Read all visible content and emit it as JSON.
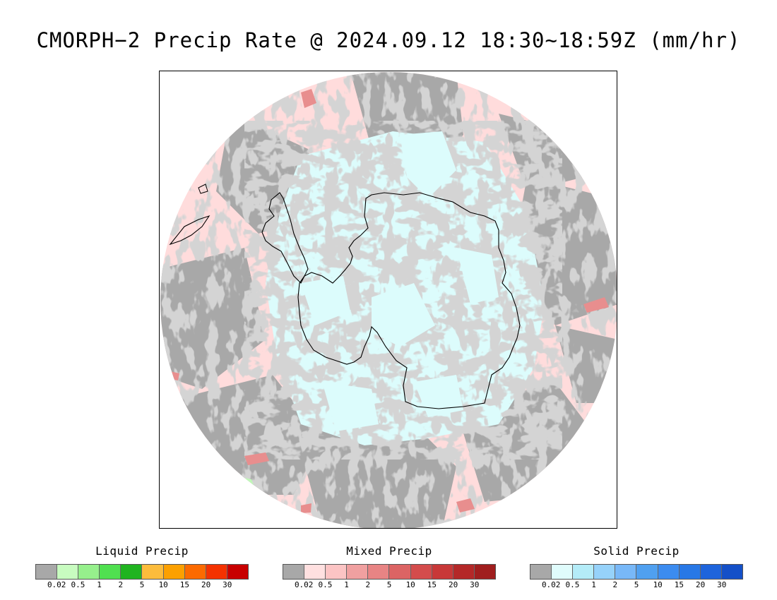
{
  "title": "CMORPH−2 Precip Rate @ 2024.09.12 18:30~18:59Z (mm/hr)",
  "colors": {
    "no_precip": "#a8a8a8",
    "mixed_light": "#ffdcdc",
    "solid_light": "#dcfcfc",
    "coast": "#000000",
    "mixed_medium": "#e88e8e",
    "liquid_light": "#c0f8b8"
  },
  "legends": [
    {
      "title": "Liquid Precip",
      "colors": [
        "#a8a8a8",
        "#c8fcc0",
        "#96f08c",
        "#50e050",
        "#20b420",
        "#fcbc3c",
        "#fca000",
        "#fc6a00",
        "#f43200",
        "#c80000"
      ],
      "ticks": [
        "0.02",
        "0.5",
        "1",
        "2",
        "5",
        "10",
        "15",
        "20",
        "30"
      ]
    },
    {
      "title": "Mixed Precip",
      "colors": [
        "#a8a8a8",
        "#ffe0e0",
        "#fcc4c4",
        "#f0a0a0",
        "#e88484",
        "#dc6464",
        "#d44c4c",
        "#c83838",
        "#b42828",
        "#a01e1e"
      ],
      "ticks": [
        "0.02",
        "0.5",
        "1",
        "2",
        "5",
        "10",
        "15",
        "20",
        "30"
      ]
    },
    {
      "title": "Solid Precip",
      "colors": [
        "#a8a8a8",
        "#e0fcfc",
        "#b4ecf8",
        "#96d2fa",
        "#78b8f8",
        "#50a0f0",
        "#3c8cf0",
        "#2878e6",
        "#1e64dc",
        "#1450c8"
      ],
      "ticks": [
        "0.02",
        "0.5",
        "1",
        "2",
        "5",
        "10",
        "15",
        "20",
        "30"
      ]
    }
  ]
}
